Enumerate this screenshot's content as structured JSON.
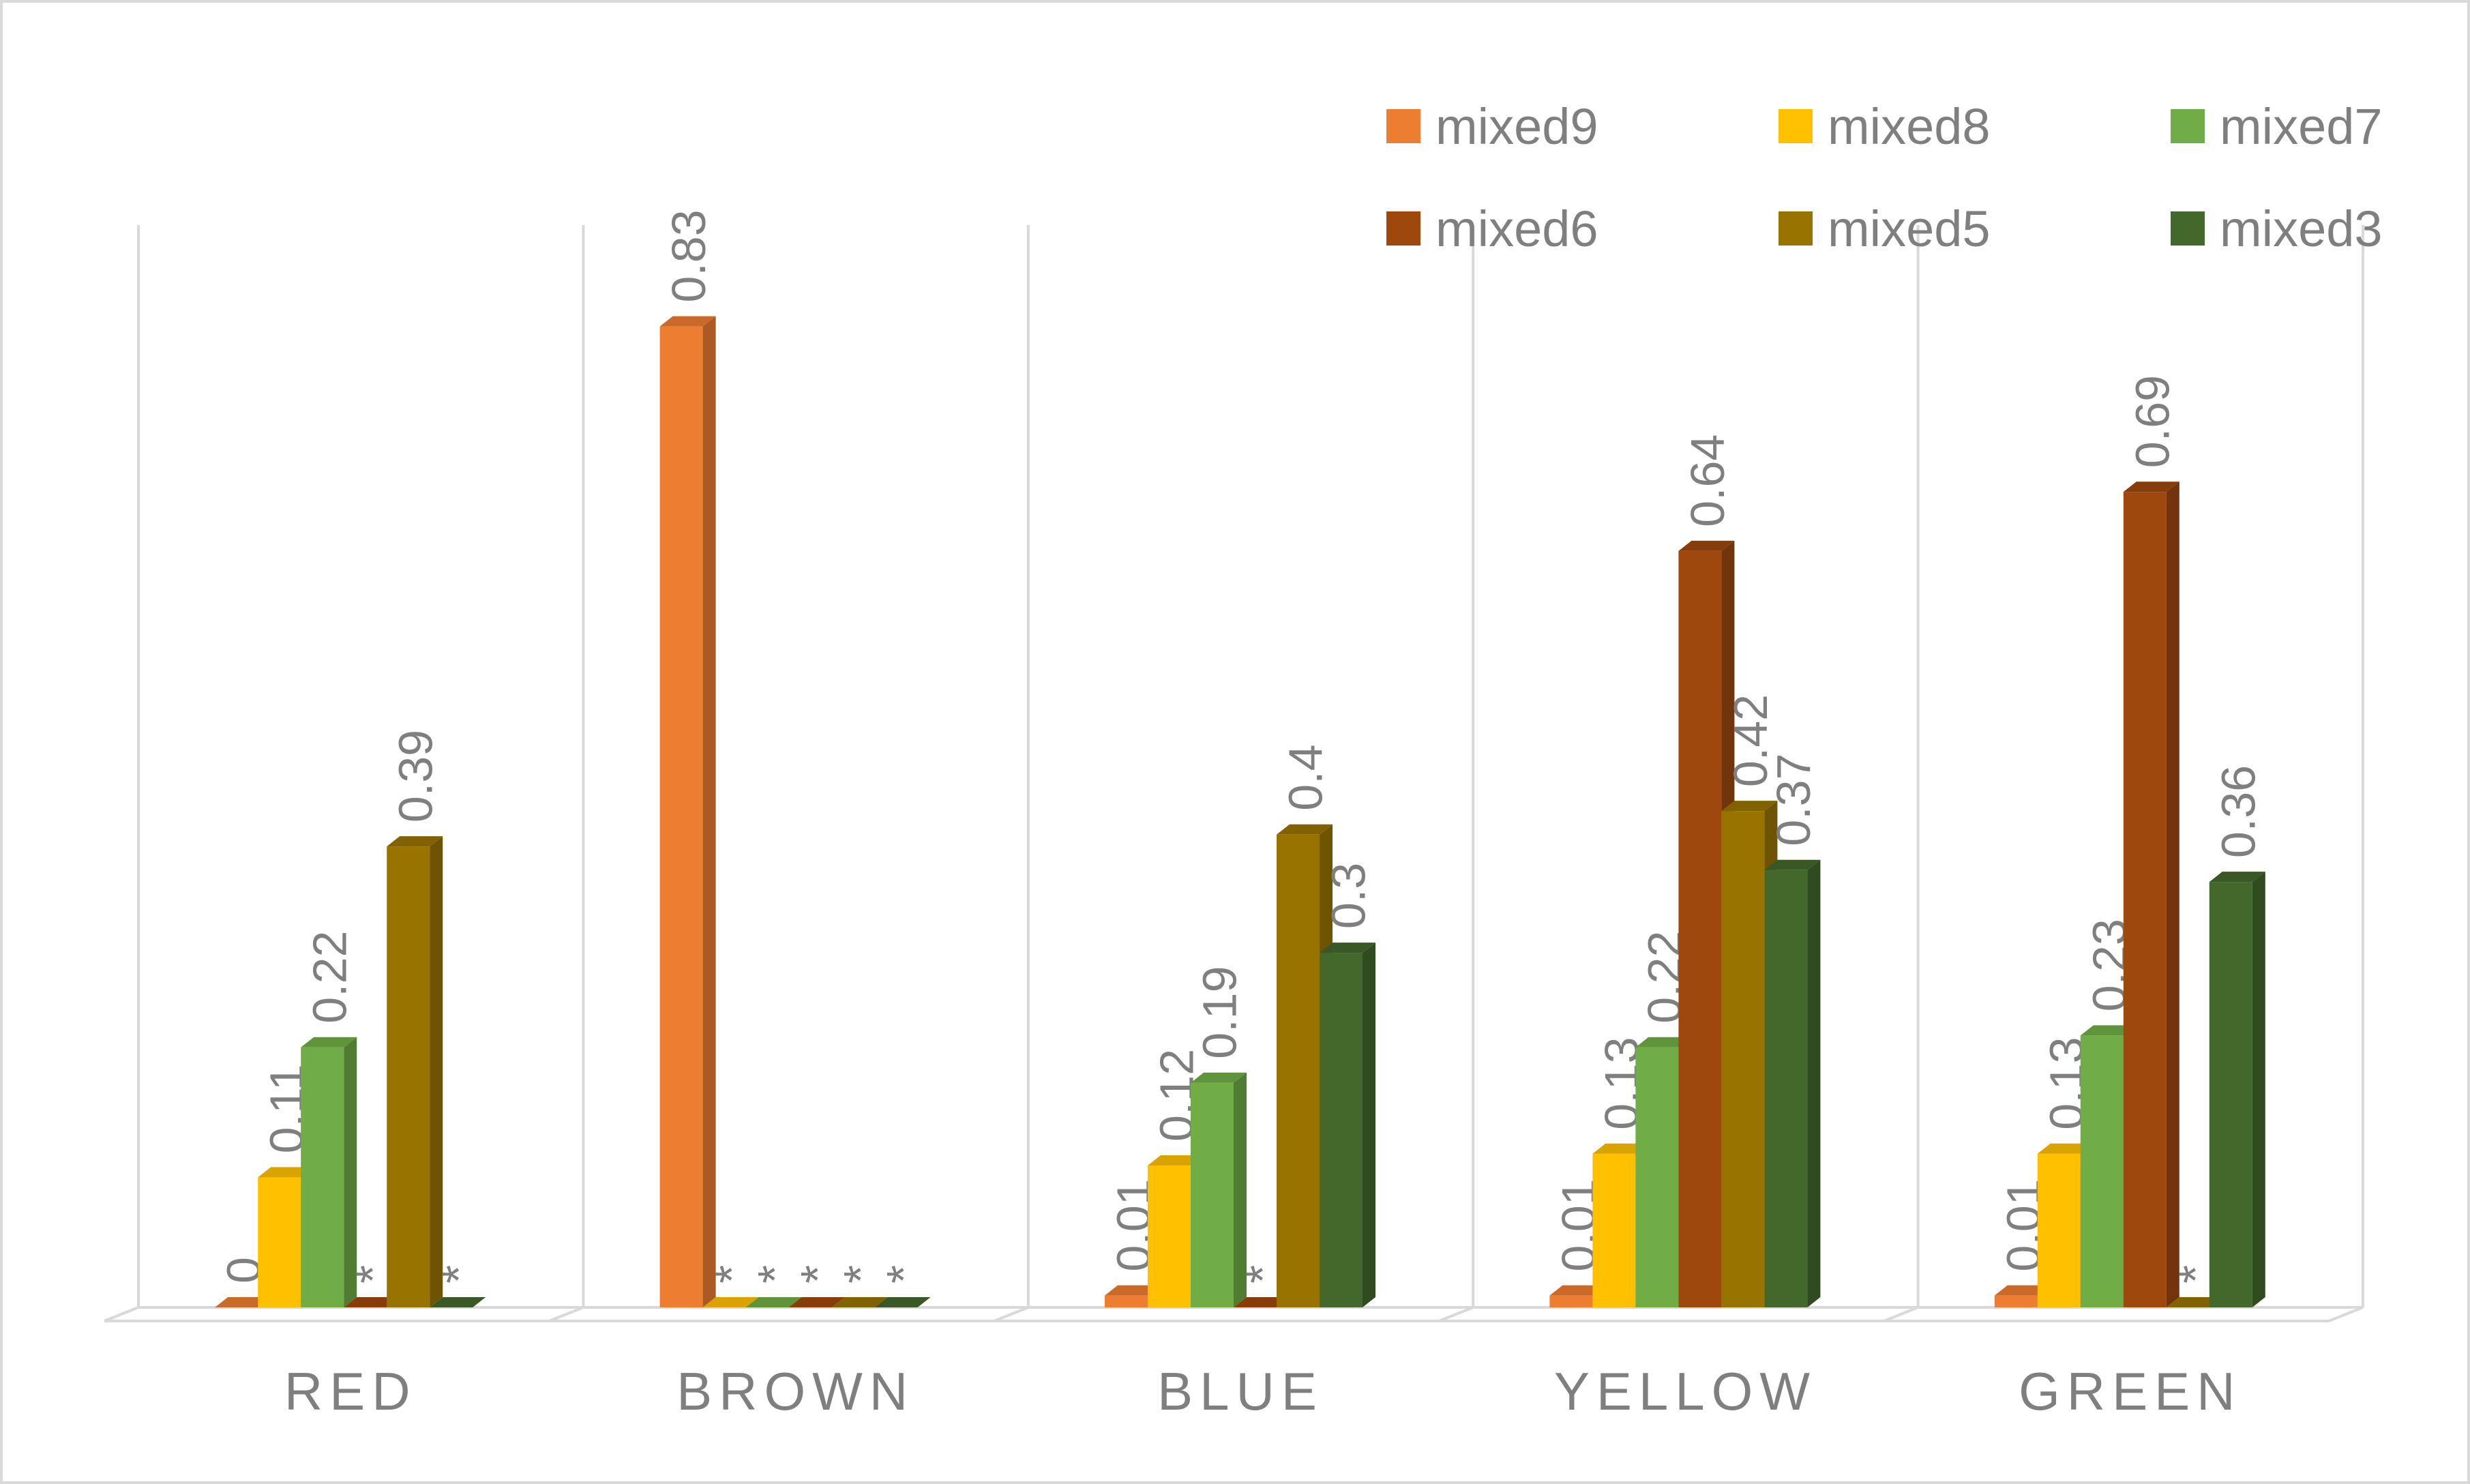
{
  "chart_data": {
    "type": "bar3d",
    "categories": [
      "RED",
      "BROWN",
      "BLUE",
      "YELLOW",
      "GREEN"
    ],
    "series": [
      {
        "name": "mixed9",
        "color": "#ed7d31",
        "values": [
          0,
          0.83,
          0.01,
          0.01,
          0.01
        ]
      },
      {
        "name": "mixed8",
        "color": "#ffc000",
        "values": [
          0.11,
          0,
          0.12,
          0.13,
          0.13
        ],
        "value_labels": [
          "0.11",
          "*",
          "0.12",
          "0.13",
          "0.13"
        ]
      },
      {
        "name": "mixed7",
        "color": "#70ad47",
        "values": [
          0.22,
          0,
          0.19,
          0.22,
          0.23
        ],
        "value_labels": [
          "0.22",
          "*",
          "0.19",
          "0.22",
          "0.23"
        ]
      },
      {
        "name": "mixed6",
        "color": "#9e480e",
        "values": [
          0,
          0,
          0,
          0.64,
          0.69
        ],
        "value_labels": [
          "*",
          "*",
          "*",
          "0.64",
          "0.69"
        ]
      },
      {
        "name": "mixed5",
        "color": "#997300",
        "values": [
          0.39,
          0,
          0.4,
          0.42,
          0
        ],
        "value_labels": [
          "0.39",
          "*",
          "0.4",
          "0.42",
          "*"
        ]
      },
      {
        "name": "mixed3",
        "color": "#43682b",
        "values": [
          0,
          0,
          0.3,
          0.37,
          0.36
        ],
        "value_labels": [
          "*",
          "*",
          "0.3",
          "0.37",
          "0.36"
        ]
      }
    ],
    "legend": "top-right"
  }
}
